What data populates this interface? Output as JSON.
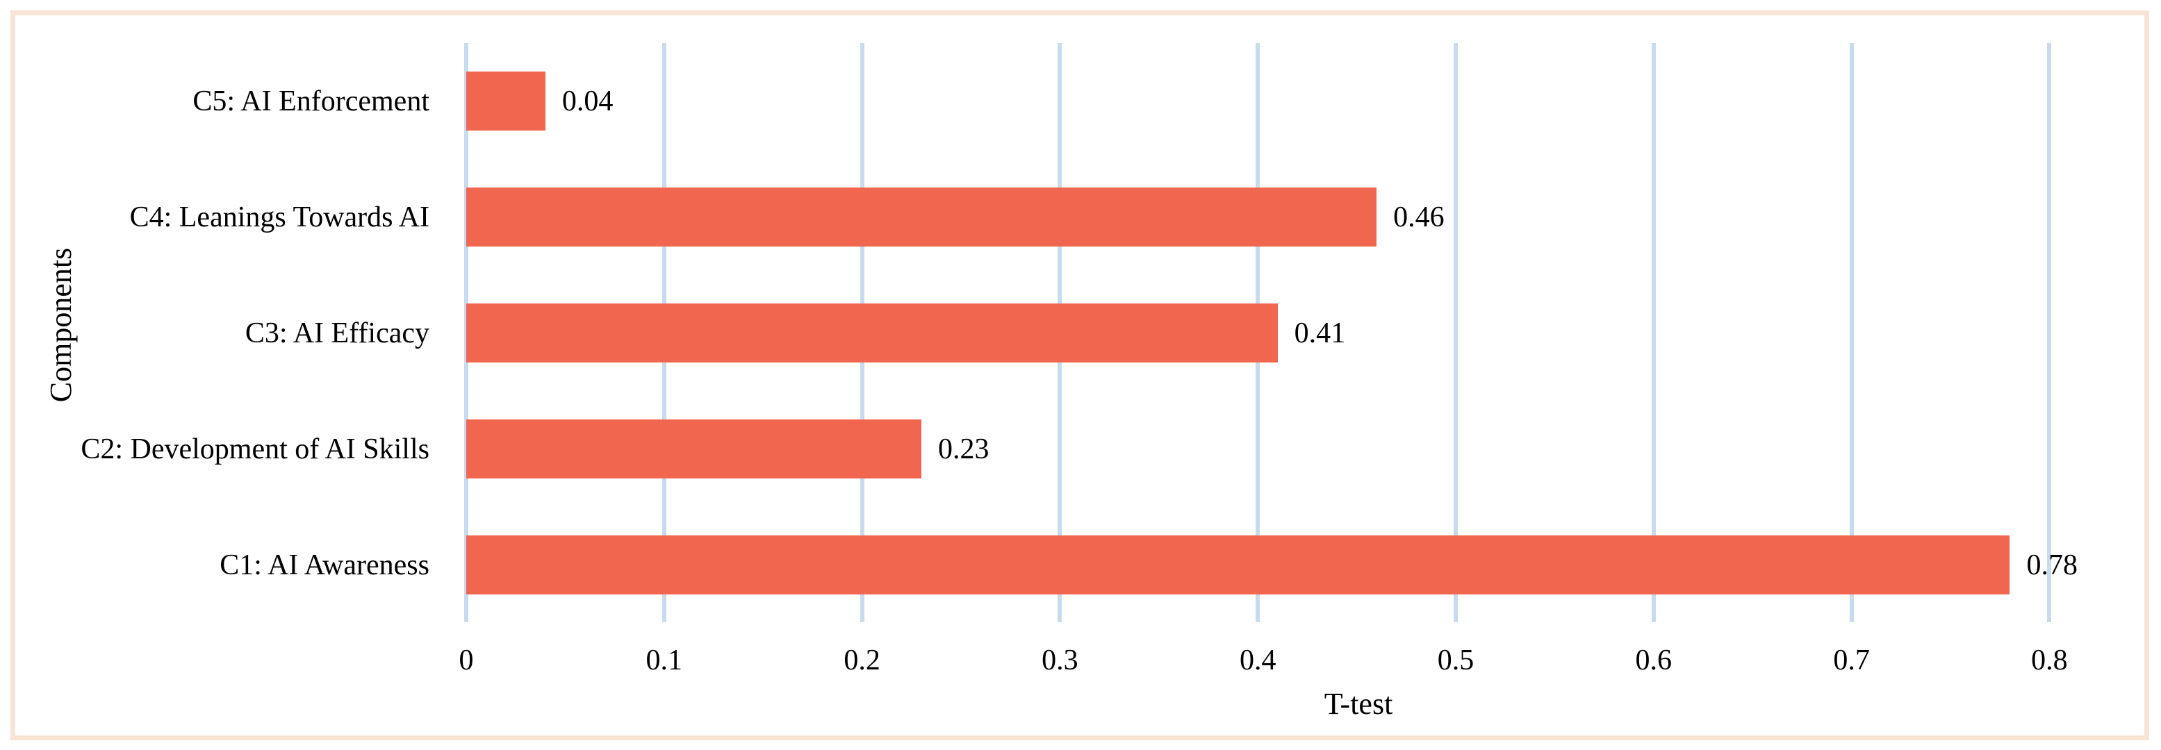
{
  "figure": {
    "kind": "horizontal-bar-chart-figure",
    "background": "#ffffff"
  },
  "chart_data": {
    "type": "bar",
    "orientation": "horizontal",
    "title": "",
    "xlabel": "T-test",
    "ylabel": "Components",
    "categories_top_to_bottom": [
      "C5: AI Enforcement",
      "C4: Leanings Towards AI",
      "C3: AI Efficacy",
      "C2: Development of AI Skills",
      "C1: AI Awareness"
    ],
    "values_top_to_bottom": [
      0.04,
      0.46,
      0.41,
      0.23,
      0.78
    ],
    "data_labels_top_to_bottom": [
      "0.04",
      "0.46",
      "0.41",
      "0.23",
      "0.78"
    ],
    "xlim": [
      0,
      0.8
    ],
    "xticks": [
      "0",
      "0.1",
      "0.2",
      "0.3",
      "0.4",
      "0.5",
      "0.6",
      "0.7",
      "0.8"
    ],
    "grid": true,
    "gridline_orientation": "vertical",
    "legend": false,
    "colors": {
      "bar": "#F0664F",
      "gridline": "#C7DBEF",
      "frame_border": "#F9E3D4",
      "text": "#000000",
      "background": "#FFFFFF"
    }
  }
}
